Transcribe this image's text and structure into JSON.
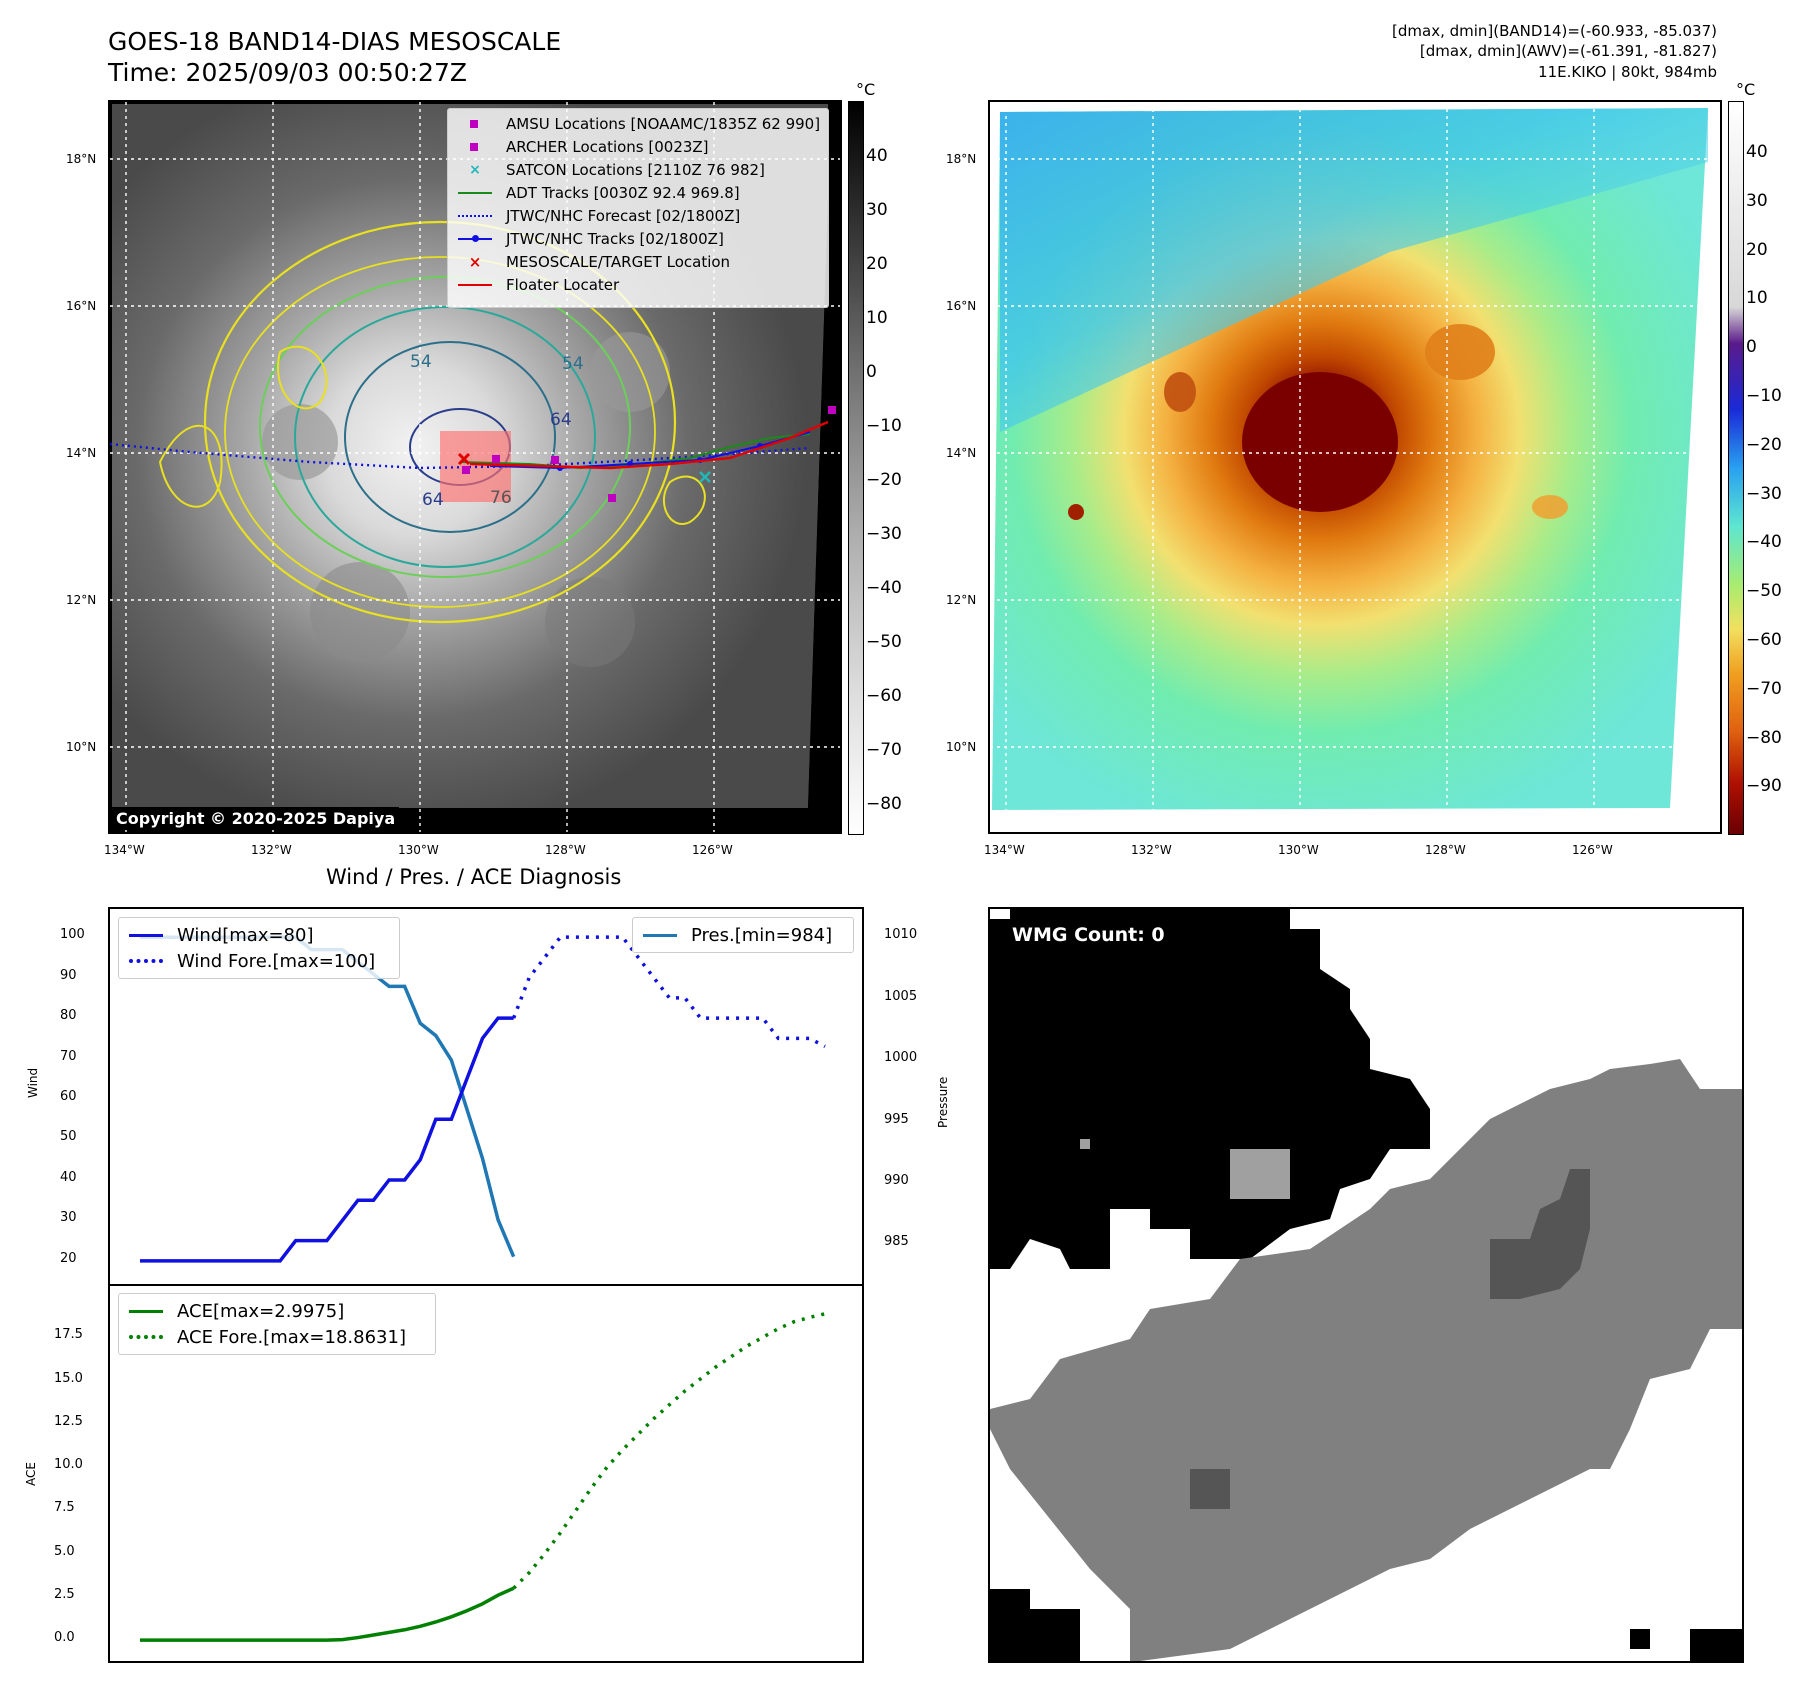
{
  "header": {
    "title_line1": "GOES-18 BAND14-DIAS MESOSCALE",
    "title_line2": "Time: 2025/09/03 00:50:27Z",
    "info_line1": "[dmax, dmin](BAND14)=(-60.933, -85.037)",
    "info_line2": "[dmax, dmin](AWV)=(-61.391, -81.827)",
    "info_line3": "11E.KIKO | 80kt, 984mb"
  },
  "map": {
    "lat_ticks": [
      "18°N",
      "16°N",
      "14°N",
      "12°N",
      "10°N"
    ],
    "lon_ticks": [
      "134°W",
      "132°W",
      "130°W",
      "128°W",
      "126°W"
    ],
    "colorbar_unit": "°C",
    "gray_colorbar_ticks": [
      "40",
      "30",
      "20",
      "10",
      "0",
      "−10",
      "−20",
      "−30",
      "−40",
      "−50",
      "−60",
      "−70",
      "−80"
    ],
    "color_colorbar_ticks": [
      "40",
      "30",
      "20",
      "10",
      "0",
      "−10",
      "−20",
      "−30",
      "−40",
      "−50",
      "−60",
      "−70",
      "−80",
      "−90"
    ],
    "copyright": "Copyright © 2020-2025 Dapiya",
    "contour_labels": [
      "54",
      "54",
      "64",
      "64",
      "76"
    ],
    "legend": [
      {
        "label": "AMSU Locations [NOAAMC/1835Z 62 990]",
        "color": "#c000c0",
        "marker": "square"
      },
      {
        "label": "ARCHER Locations [0023Z]",
        "color": "#c000c0",
        "marker": "square"
      },
      {
        "label": "SATCON Locations [2110Z 76 982]",
        "color": "#20b8b8",
        "marker": "x"
      },
      {
        "label": "ADT Tracks [0030Z 92.4 969.8]",
        "color": "#1a8a1a",
        "marker": "line"
      },
      {
        "label": "JTWC/NHC Forecast [02/1800Z]",
        "color": "#1010e0",
        "marker": "dotted"
      },
      {
        "label": "JTWC/NHC Tracks [02/1800Z]",
        "color": "#1010e0",
        "marker": "line-dot"
      },
      {
        "label": "MESOSCALE/TARGET Location",
        "color": "#e00000",
        "marker": "x"
      },
      {
        "label": "Floater Locater",
        "color": "#e00000",
        "marker": "line"
      }
    ]
  },
  "diagnosis": {
    "title": "Wind / Pres. / ACE Diagnosis",
    "wind_ylabel": "Wind",
    "pressure_ylabel": "Pressure",
    "ace_ylabel": "ACE",
    "wind_ticks": [
      "100",
      "90",
      "80",
      "70",
      "60",
      "50",
      "40",
      "30",
      "20"
    ],
    "pressure_ticks": [
      "1010",
      "1005",
      "1000",
      "995",
      "990",
      "985"
    ],
    "ace_ticks": [
      "17.5",
      "15.0",
      "12.5",
      "10.0",
      "7.5",
      "5.0",
      "2.5",
      "0.0"
    ],
    "legend_wind": "Wind[max=80]",
    "legend_wind_fore": "Wind Fore.[max=100]",
    "legend_pres": "Pres.[min=984]",
    "legend_ace": "ACE[max=2.9975]",
    "legend_ace_fore": "ACE Fore.[max=18.8631]"
  },
  "wmg": {
    "label": "WMG Count: 0"
  },
  "chart_data": [
    {
      "type": "line",
      "title": "Wind / Pres. / ACE Diagnosis",
      "ylabel": "Wind",
      "ylim": [
        18,
        103
      ],
      "series": [
        {
          "name": "Wind[max=80]",
          "x": [
            0,
            1,
            2,
            3,
            4,
            5,
            6,
            7,
            8,
            9,
            10,
            11,
            12,
            13,
            14,
            15,
            16,
            17,
            18,
            19,
            20,
            21,
            22,
            23,
            24
          ],
          "values": [
            20,
            20,
            20,
            20,
            20,
            20,
            20,
            20,
            20,
            20,
            25,
            25,
            25,
            30,
            35,
            35,
            40,
            40,
            45,
            55,
            55,
            65,
            75,
            80,
            80
          ]
        },
        {
          "name": "Wind Fore.[max=100]",
          "x": [
            24,
            25,
            26,
            27,
            28,
            29,
            30,
            31,
            32,
            33,
            34,
            35,
            36,
            37,
            38,
            39,
            40,
            41,
            42,
            43,
            44
          ],
          "values": [
            80,
            90,
            95,
            100,
            100,
            100,
            100,
            100,
            95,
            90,
            85,
            85,
            80,
            80,
            80,
            80,
            80,
            75,
            75,
            75,
            73
          ]
        }
      ]
    },
    {
      "type": "line",
      "ylabel": "Pressure",
      "ylim": [
        983,
        1011
      ],
      "series": [
        {
          "name": "Pres.[min=984]",
          "x": [
            0,
            1,
            2,
            3,
            4,
            5,
            6,
            7,
            8,
            9,
            10,
            11,
            12,
            13,
            14,
            15,
            16,
            17,
            18,
            19,
            20,
            21,
            22,
            23,
            24
          ],
          "values": [
            1010,
            1010,
            1010,
            1010,
            1010,
            1010,
            1010,
            1010,
            1010,
            1010,
            1010,
            1009,
            1009,
            1009,
            1008,
            1007,
            1006,
            1006,
            1003,
            1002,
            1000,
            996,
            992,
            987,
            984
          ]
        }
      ]
    },
    {
      "type": "line",
      "ylabel": "ACE",
      "ylim": [
        -0.8,
        19.6
      ],
      "series": [
        {
          "name": "ACE[max=2.9975]",
          "x": [
            0,
            1,
            2,
            3,
            4,
            5,
            6,
            7,
            8,
            9,
            10,
            11,
            12,
            13,
            14,
            15,
            16,
            17,
            18,
            19,
            20,
            21,
            22,
            23,
            24
          ],
          "values": [
            0,
            0,
            0,
            0,
            0,
            0,
            0,
            0,
            0,
            0,
            0,
            0,
            0,
            0.03,
            0.15,
            0.3,
            0.45,
            0.6,
            0.8,
            1.05,
            1.35,
            1.7,
            2.1,
            2.6,
            3.0
          ]
        },
        {
          "name": "ACE Fore.[max=18.8631]",
          "x": [
            24,
            25,
            26,
            27,
            28,
            29,
            30,
            31,
            32,
            33,
            34,
            35,
            36,
            37,
            38,
            39,
            40,
            41,
            42,
            43,
            44
          ],
          "values": [
            3.0,
            3.9,
            5.0,
            6.2,
            7.5,
            8.8,
            10.0,
            11.0,
            11.9,
            12.8,
            13.6,
            14.4,
            15.1,
            15.8,
            16.4,
            17.0,
            17.5,
            18.0,
            18.4,
            18.65,
            18.86
          ]
        }
      ]
    }
  ]
}
